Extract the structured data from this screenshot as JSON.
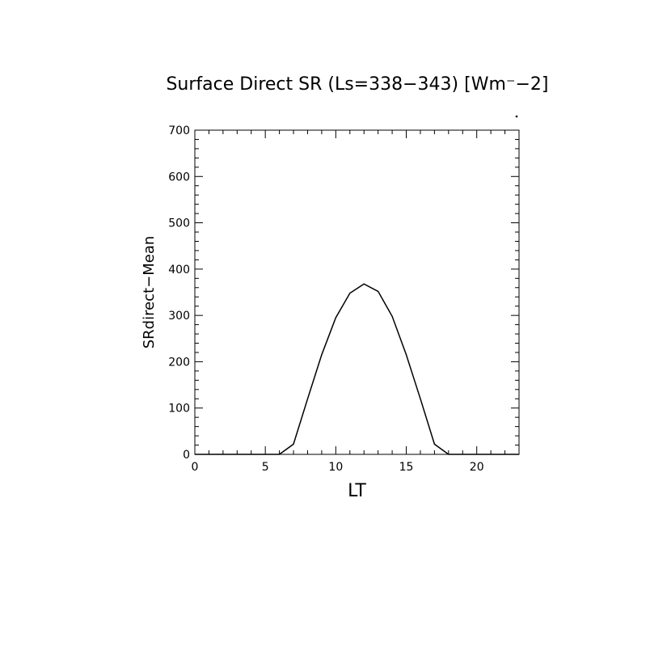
{
  "chart_data": {
    "type": "line",
    "title": "Surface Direct SR (Ls=338−343) [Wm⁻−2]",
    "xlabel": "LT",
    "ylabel": "SRdirect−Mean",
    "xlim": [
      0,
      23
    ],
    "ylim": [
      0,
      700
    ],
    "xticks": [
      0,
      5,
      10,
      15,
      20
    ],
    "yticks": [
      0,
      100,
      200,
      300,
      400,
      500,
      600,
      700
    ],
    "grid": false,
    "series": [
      {
        "x": [
          0,
          1,
          2,
          3,
          4,
          5,
          6,
          7,
          8,
          9,
          10,
          11,
          12,
          13,
          14,
          15,
          16,
          17,
          18,
          19,
          20,
          21,
          22,
          23
        ],
        "values": [
          0,
          0,
          0,
          0,
          0,
          0,
          0,
          22,
          120,
          215,
          295,
          348,
          368,
          352,
          298,
          215,
          120,
          22,
          0,
          0,
          0,
          0,
          0,
          0
        ]
      }
    ]
  }
}
